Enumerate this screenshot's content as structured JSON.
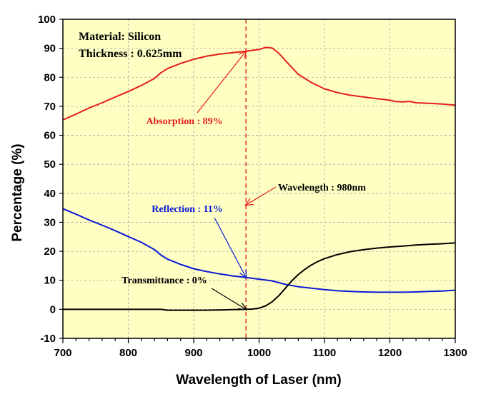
{
  "chart_data": {
    "type": "line",
    "xlabel": "Wavelength of Laser (nm)",
    "ylabel": "Percentage (%)",
    "xlim": [
      700,
      1300
    ],
    "ylim": [
      -10,
      100
    ],
    "xticks": [
      700,
      800,
      900,
      1000,
      1100,
      1200,
      1300
    ],
    "yticks": [
      -10,
      0,
      10,
      20,
      30,
      40,
      50,
      60,
      70,
      80,
      90,
      100
    ],
    "grid": true,
    "background_color": "#ffffc4",
    "info_lines": [
      "Material: Silicon",
      "Thickness : 0.625mm"
    ],
    "marker_line": {
      "x": 980,
      "color": "#e03030"
    },
    "series": [
      {
        "name": "Absorption",
        "color": "#e51c1c",
        "x": [
          700,
          720,
          740,
          760,
          780,
          800,
          820,
          840,
          850,
          860,
          880,
          900,
          920,
          940,
          960,
          980,
          1000,
          1010,
          1020,
          1030,
          1040,
          1060,
          1080,
          1100,
          1120,
          1140,
          1160,
          1180,
          1200,
          1210,
          1220,
          1230,
          1240,
          1260,
          1280,
          1300
        ],
        "y": [
          65.3,
          67.3,
          69.4,
          71.2,
          73.2,
          75.1,
          77.2,
          79.6,
          81.6,
          83.0,
          84.8,
          86.2,
          87.3,
          88.0,
          88.5,
          89.0,
          89.6,
          90.3,
          90.1,
          88.3,
          85.8,
          81.0,
          78.2,
          76.0,
          74.7,
          73.8,
          73.2,
          72.6,
          72.1,
          71.6,
          71.5,
          71.7,
          71.2,
          71.0,
          70.8,
          70.4
        ]
      },
      {
        "name": "Reflection",
        "color": "#0a1ad6",
        "x": [
          700,
          720,
          740,
          760,
          780,
          800,
          820,
          840,
          850,
          860,
          880,
          900,
          920,
          940,
          960,
          980,
          1000,
          1020,
          1040,
          1060,
          1080,
          1100,
          1120,
          1140,
          1160,
          1180,
          1200,
          1220,
          1240,
          1260,
          1280,
          1300
        ],
        "y": [
          34.7,
          32.8,
          30.8,
          29.0,
          27.1,
          25.1,
          23.1,
          20.6,
          18.7,
          17.3,
          15.5,
          14.0,
          13.0,
          12.2,
          11.5,
          11.0,
          10.4,
          9.8,
          8.6,
          7.8,
          7.3,
          6.8,
          6.4,
          6.2,
          6.0,
          5.9,
          5.9,
          5.9,
          6.0,
          6.2,
          6.3,
          6.6
        ]
      },
      {
        "name": "Transmittance",
        "color": "#000000",
        "x": [
          700,
          740,
          780,
          820,
          850,
          860,
          880,
          900,
          920,
          940,
          960,
          980,
          990,
          1000,
          1010,
          1020,
          1030,
          1040,
          1050,
          1060,
          1070,
          1080,
          1090,
          1100,
          1120,
          1140,
          1160,
          1180,
          1200,
          1220,
          1240,
          1260,
          1280,
          1300
        ],
        "y": [
          0.0,
          0.0,
          0.0,
          0.0,
          0.0,
          -0.3,
          -0.3,
          -0.3,
          -0.3,
          -0.2,
          -0.1,
          0.0,
          0.1,
          0.4,
          1.2,
          2.6,
          4.7,
          7.2,
          9.8,
          12.0,
          13.8,
          15.3,
          16.5,
          17.5,
          18.9,
          19.9,
          20.6,
          21.1,
          21.5,
          21.8,
          22.2,
          22.4,
          22.6,
          22.9
        ]
      }
    ],
    "annotations": [
      {
        "text": "Absorption : 89%",
        "color": "#e51c1c",
        "point": [
          980,
          89
        ]
      },
      {
        "text": "Reflection : 11%",
        "color": "#0a1ad6",
        "point": [
          980,
          11
        ]
      },
      {
        "text": "Transmittance : 0%",
        "color": "#000000",
        "point": [
          980,
          0
        ]
      },
      {
        "text": "Wavelength : 980nm",
        "color": "#000000",
        "point": [
          980,
          36
        ]
      }
    ]
  }
}
